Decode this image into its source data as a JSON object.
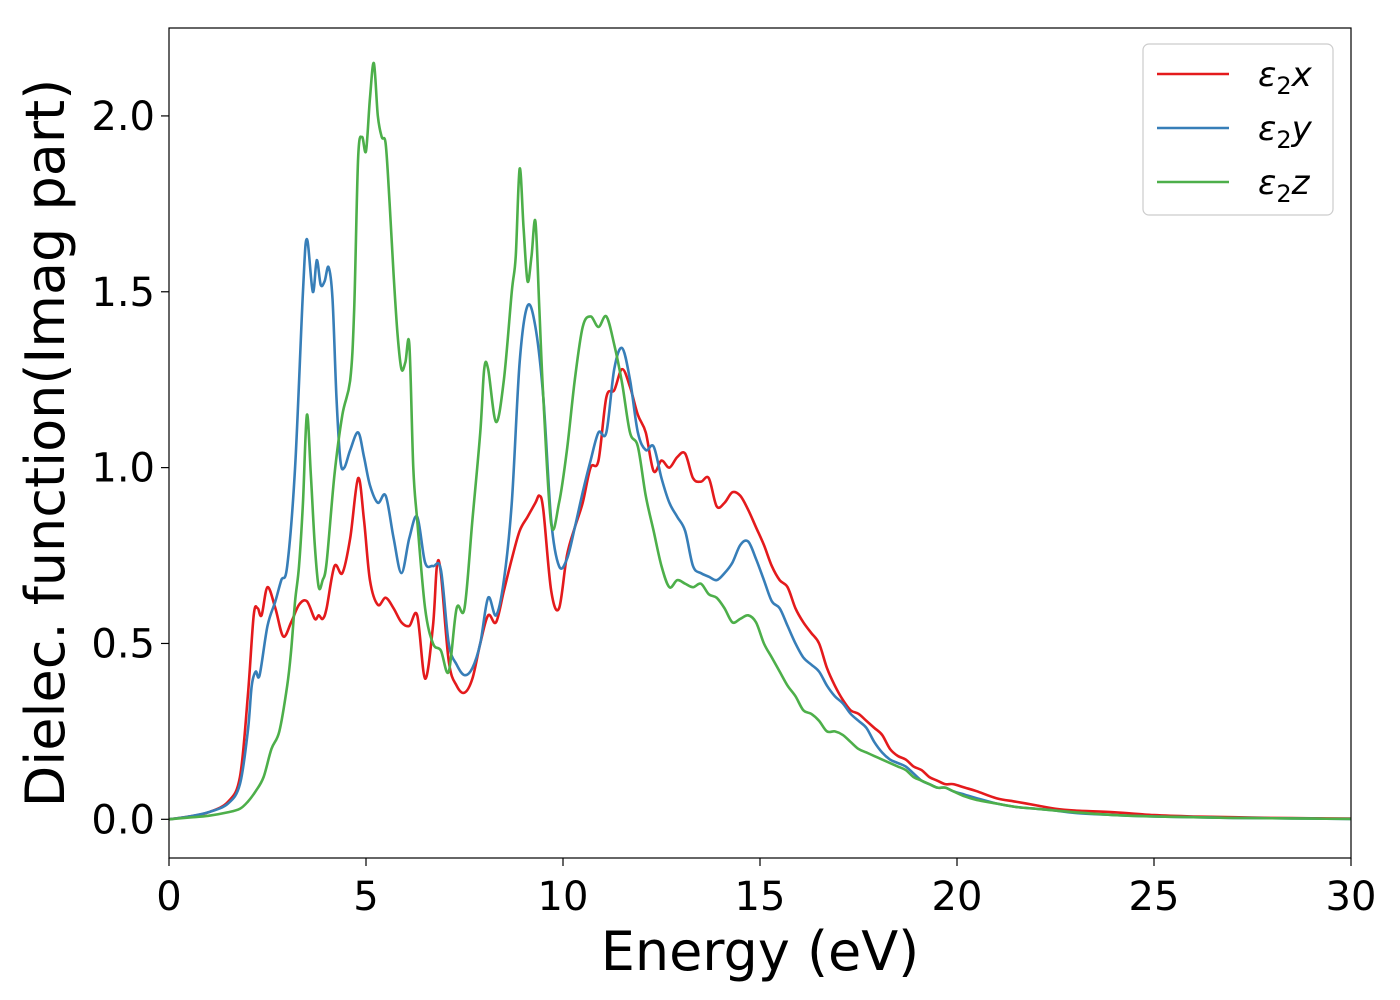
{
  "chart_data": {
    "type": "line",
    "title": "",
    "xlabel": "Energy (eV)",
    "ylabel": "Dielec. function(Imag part)",
    "xlim": [
      0,
      30
    ],
    "ylim": [
      -0.11,
      2.25
    ],
    "xticks": [
      0,
      5,
      10,
      15,
      20,
      25,
      30
    ],
    "xtick_labels": [
      "0",
      "5",
      "10",
      "15",
      "20",
      "25",
      "30"
    ],
    "yticks": [
      0.0,
      0.5,
      1.0,
      1.5,
      2.0
    ],
    "ytick_labels": [
      "0.0",
      "0.5",
      "1.0",
      "1.5",
      "2.0"
    ],
    "grid": false,
    "legend_position": "top-right",
    "series": [
      {
        "name": "ε₂x",
        "legend_base": "ε",
        "legend_sub": "2",
        "legend_suffix": "x",
        "color": "#e41a1c",
        "x": [
          0,
          0.5,
          1.0,
          1.5,
          1.8,
          2.0,
          2.15,
          2.25,
          2.35,
          2.5,
          2.7,
          2.9,
          3.1,
          3.3,
          3.5,
          3.7,
          3.8,
          3.9,
          4.0,
          4.2,
          4.4,
          4.6,
          4.8,
          4.95,
          5.1,
          5.3,
          5.5,
          5.7,
          5.9,
          6.1,
          6.3,
          6.5,
          6.7,
          6.8,
          6.9,
          7.1,
          7.3,
          7.5,
          7.7,
          7.9,
          8.1,
          8.3,
          8.5,
          8.7,
          8.9,
          9.1,
          9.3,
          9.4,
          9.5,
          9.7,
          9.9,
          10.1,
          10.3,
          10.5,
          10.7,
          10.9,
          11.1,
          11.3,
          11.5,
          11.7,
          11.9,
          12.1,
          12.3,
          12.5,
          12.7,
          12.9,
          13.1,
          13.3,
          13.5,
          13.7,
          13.9,
          14.1,
          14.3,
          14.5,
          14.7,
          14.9,
          15.1,
          15.3,
          15.5,
          15.7,
          15.9,
          16.1,
          16.3,
          16.5,
          16.7,
          16.9,
          17.1,
          17.3,
          17.5,
          17.7,
          17.9,
          18.1,
          18.3,
          18.5,
          18.7,
          18.9,
          19.1,
          19.3,
          19.5,
          19.7,
          19.9,
          20.2,
          20.5,
          21.0,
          21.5,
          22.0,
          22.5,
          23.0,
          24.0,
          25.0,
          26.0,
          27.0,
          28.0,
          29.0,
          30.0
        ],
        "values": [
          0.0,
          0.008,
          0.02,
          0.05,
          0.12,
          0.35,
          0.58,
          0.6,
          0.58,
          0.66,
          0.6,
          0.52,
          0.56,
          0.61,
          0.62,
          0.57,
          0.58,
          0.57,
          0.6,
          0.72,
          0.7,
          0.8,
          0.97,
          0.85,
          0.68,
          0.61,
          0.63,
          0.6,
          0.56,
          0.55,
          0.58,
          0.4,
          0.55,
          0.72,
          0.7,
          0.45,
          0.38,
          0.36,
          0.4,
          0.5,
          0.58,
          0.56,
          0.65,
          0.74,
          0.82,
          0.86,
          0.9,
          0.92,
          0.88,
          0.65,
          0.6,
          0.75,
          0.83,
          0.9,
          1.0,
          1.02,
          1.2,
          1.22,
          1.28,
          1.23,
          1.15,
          1.1,
          0.99,
          1.02,
          1.0,
          1.03,
          1.04,
          0.97,
          0.96,
          0.97,
          0.89,
          0.9,
          0.93,
          0.92,
          0.88,
          0.83,
          0.78,
          0.72,
          0.68,
          0.66,
          0.6,
          0.56,
          0.53,
          0.5,
          0.43,
          0.38,
          0.34,
          0.31,
          0.3,
          0.28,
          0.26,
          0.24,
          0.2,
          0.18,
          0.17,
          0.15,
          0.14,
          0.12,
          0.11,
          0.1,
          0.1,
          0.09,
          0.08,
          0.06,
          0.05,
          0.04,
          0.03,
          0.025,
          0.02,
          0.012,
          0.008,
          0.006,
          0.004,
          0.003,
          0.002
        ]
      },
      {
        "name": "ε₂y",
        "legend_base": "ε",
        "legend_sub": "2",
        "legend_suffix": "y",
        "color": "#377eb8",
        "x": [
          0,
          0.5,
          1.0,
          1.5,
          1.8,
          2.0,
          2.1,
          2.2,
          2.3,
          2.5,
          2.7,
          2.85,
          3.0,
          3.2,
          3.4,
          3.5,
          3.65,
          3.75,
          3.85,
          3.95,
          4.05,
          4.15,
          4.25,
          4.35,
          4.45,
          4.6,
          4.8,
          4.95,
          5.1,
          5.3,
          5.5,
          5.7,
          5.9,
          6.1,
          6.3,
          6.5,
          6.7,
          6.9,
          7.1,
          7.3,
          7.5,
          7.7,
          7.9,
          8.1,
          8.3,
          8.5,
          8.7,
          8.9,
          9.1,
          9.3,
          9.5,
          9.7,
          9.9,
          10.1,
          10.3,
          10.5,
          10.7,
          10.9,
          11.1,
          11.3,
          11.5,
          11.7,
          11.9,
          12.1,
          12.3,
          12.5,
          12.7,
          12.9,
          13.1,
          13.3,
          13.5,
          13.7,
          13.9,
          14.1,
          14.3,
          14.5,
          14.7,
          14.9,
          15.1,
          15.3,
          15.5,
          15.7,
          15.9,
          16.1,
          16.3,
          16.5,
          16.7,
          16.9,
          17.1,
          17.3,
          17.5,
          17.7,
          17.9,
          18.1,
          18.3,
          18.5,
          18.7,
          18.9,
          19.1,
          19.3,
          19.5,
          19.7,
          19.9,
          20.2,
          20.5,
          21.0,
          21.5,
          22.0,
          22.5,
          23.0,
          24.0,
          25.0,
          26.0,
          27.0,
          28.0,
          29.0,
          30.0
        ],
        "values": [
          0.0,
          0.008,
          0.02,
          0.045,
          0.1,
          0.25,
          0.38,
          0.42,
          0.41,
          0.55,
          0.62,
          0.68,
          0.72,
          1.0,
          1.5,
          1.65,
          1.5,
          1.59,
          1.52,
          1.53,
          1.57,
          1.48,
          1.2,
          1.02,
          1.0,
          1.05,
          1.1,
          1.03,
          0.95,
          0.9,
          0.92,
          0.8,
          0.7,
          0.8,
          0.86,
          0.73,
          0.72,
          0.71,
          0.5,
          0.44,
          0.41,
          0.43,
          0.5,
          0.63,
          0.58,
          0.68,
          0.9,
          1.3,
          1.46,
          1.4,
          1.2,
          0.85,
          0.72,
          0.74,
          0.83,
          0.93,
          1.02,
          1.1,
          1.1,
          1.28,
          1.34,
          1.25,
          1.1,
          1.05,
          1.06,
          0.97,
          0.9,
          0.86,
          0.82,
          0.72,
          0.7,
          0.69,
          0.68,
          0.7,
          0.73,
          0.78,
          0.79,
          0.74,
          0.68,
          0.62,
          0.6,
          0.55,
          0.5,
          0.46,
          0.44,
          0.42,
          0.38,
          0.35,
          0.33,
          0.3,
          0.28,
          0.26,
          0.22,
          0.19,
          0.17,
          0.16,
          0.15,
          0.13,
          0.11,
          0.1,
          0.09,
          0.09,
          0.08,
          0.07,
          0.06,
          0.045,
          0.035,
          0.03,
          0.025,
          0.018,
          0.012,
          0.008,
          0.006,
          0.004,
          0.003,
          0.002,
          0.001
        ]
      },
      {
        "name": "ε₂z",
        "legend_base": "ε",
        "legend_sub": "2",
        "legend_suffix": "z",
        "color": "#4daf4a",
        "x": [
          0,
          0.5,
          1.0,
          1.5,
          1.8,
          2.0,
          2.2,
          2.4,
          2.6,
          2.8,
          3.0,
          3.1,
          3.2,
          3.3,
          3.4,
          3.5,
          3.6,
          3.7,
          3.8,
          3.9,
          4.0,
          4.2,
          4.4,
          4.6,
          4.7,
          4.8,
          4.9,
          5.0,
          5.1,
          5.2,
          5.3,
          5.4,
          5.5,
          5.6,
          5.7,
          5.8,
          5.9,
          6.0,
          6.1,
          6.2,
          6.3,
          6.5,
          6.7,
          6.9,
          7.1,
          7.3,
          7.5,
          7.7,
          7.9,
          8.0,
          8.1,
          8.3,
          8.5,
          8.7,
          8.8,
          8.9,
          9.0,
          9.1,
          9.2,
          9.3,
          9.4,
          9.5,
          9.7,
          9.9,
          10.1,
          10.3,
          10.5,
          10.7,
          10.9,
          11.1,
          11.3,
          11.5,
          11.7,
          11.9,
          12.1,
          12.3,
          12.5,
          12.7,
          12.9,
          13.1,
          13.3,
          13.5,
          13.7,
          13.9,
          14.1,
          14.3,
          14.5,
          14.7,
          14.9,
          15.1,
          15.3,
          15.5,
          15.7,
          15.9,
          16.1,
          16.3,
          16.5,
          16.7,
          16.9,
          17.1,
          17.3,
          17.5,
          17.7,
          17.9,
          18.1,
          18.3,
          18.5,
          18.7,
          18.9,
          19.1,
          19.3,
          19.5,
          19.7,
          19.9,
          20.2,
          20.5,
          21.0,
          21.5,
          22.0,
          22.5,
          23.0,
          24.0,
          25.0,
          26.0,
          27.0,
          28.0,
          29.0,
          30.0
        ],
        "values": [
          0.0,
          0.005,
          0.01,
          0.02,
          0.03,
          0.05,
          0.08,
          0.12,
          0.2,
          0.25,
          0.38,
          0.48,
          0.62,
          0.72,
          0.9,
          1.15,
          0.98,
          0.78,
          0.66,
          0.68,
          0.73,
          0.98,
          1.15,
          1.25,
          1.45,
          1.88,
          1.94,
          1.9,
          2.05,
          2.15,
          2.0,
          1.94,
          1.92,
          1.75,
          1.55,
          1.38,
          1.28,
          1.3,
          1.35,
          1.0,
          0.85,
          0.6,
          0.5,
          0.48,
          0.42,
          0.6,
          0.6,
          0.85,
          1.1,
          1.28,
          1.28,
          1.13,
          1.25,
          1.5,
          1.6,
          1.85,
          1.68,
          1.53,
          1.6,
          1.7,
          1.45,
          1.2,
          0.84,
          0.9,
          1.05,
          1.25,
          1.4,
          1.43,
          1.4,
          1.43,
          1.35,
          1.24,
          1.1,
          1.06,
          0.92,
          0.82,
          0.72,
          0.66,
          0.68,
          0.67,
          0.66,
          0.67,
          0.64,
          0.63,
          0.6,
          0.56,
          0.57,
          0.58,
          0.56,
          0.5,
          0.46,
          0.42,
          0.38,
          0.35,
          0.31,
          0.3,
          0.28,
          0.25,
          0.25,
          0.24,
          0.22,
          0.2,
          0.19,
          0.18,
          0.17,
          0.16,
          0.15,
          0.14,
          0.12,
          0.11,
          0.1,
          0.09,
          0.09,
          0.08,
          0.065,
          0.055,
          0.045,
          0.035,
          0.03,
          0.025,
          0.02,
          0.012,
          0.008,
          0.006,
          0.004,
          0.003,
          0.002,
          0.001
        ]
      }
    ]
  }
}
